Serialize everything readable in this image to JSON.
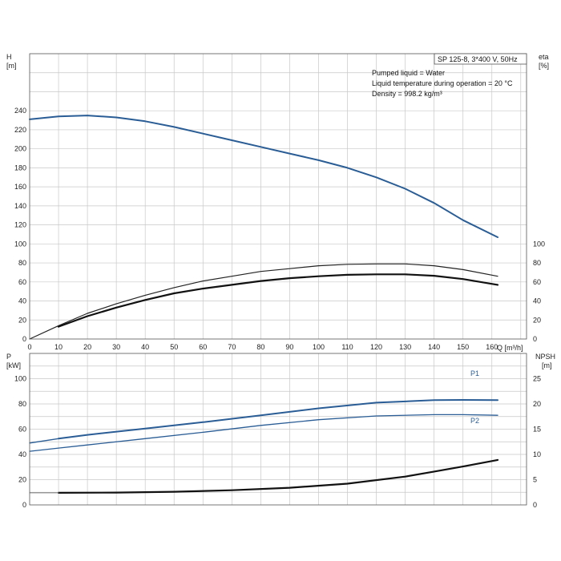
{
  "chart_data": [
    {
      "type": "line",
      "panel": "upper",
      "title_box": "SP 125-8, 3*400 V, 50Hz",
      "info_lines": [
        "Pumped liquid = Water",
        "Liquid temperature during operation = 20 °C",
        "Density = 998.2 kg/m³"
      ],
      "xlabel": "Q [m³/h]",
      "x_ticks": [
        0,
        10,
        20,
        30,
        40,
        50,
        60,
        70,
        80,
        90,
        100,
        110,
        120,
        130,
        140,
        150,
        160
      ],
      "xlim": [
        0,
        172
      ],
      "y_left": {
        "label_line1": "H",
        "label_line2": "[m]",
        "ylim": [
          0,
          300
        ],
        "ticks": [
          0,
          20,
          40,
          60,
          80,
          100,
          120,
          140,
          160,
          180,
          200,
          220,
          240
        ]
      },
      "y_right": {
        "label_line1": "eta",
        "label_line2": "[%]",
        "ticks": [
          0,
          20,
          40,
          60,
          80,
          100
        ]
      },
      "grid": true,
      "series": [
        {
          "role": "head",
          "color": "#2a5d95",
          "x": [
            0,
            10,
            20,
            30,
            40,
            50,
            60,
            70,
            80,
            90,
            100,
            110,
            120,
            130,
            140,
            150,
            162
          ],
          "values": [
            231,
            234,
            235,
            233,
            229,
            223,
            216,
            209,
            202,
            195,
            188,
            180,
            170,
            158,
            143,
            125,
            107
          ]
        },
        {
          "role": "eta-thin",
          "color": "#222222",
          "x": [
            0,
            10,
            20,
            30,
            40,
            50,
            60,
            70,
            80,
            90,
            100,
            110,
            120,
            130,
            140,
            150,
            162
          ],
          "values": [
            0,
            14,
            27,
            37,
            46,
            54,
            61,
            66,
            71,
            74,
            77,
            78.5,
            79,
            79,
            77,
            73,
            66
          ]
        },
        {
          "role": "eta-thick",
          "color": "#111111",
          "x": [
            10,
            20,
            30,
            40,
            50,
            60,
            70,
            80,
            90,
            100,
            110,
            120,
            130,
            140,
            150,
            162
          ],
          "values": [
            13,
            24,
            33,
            41,
            48,
            53,
            57,
            61,
            64,
            66,
            67.5,
            68,
            68,
            66.5,
            63,
            57
          ]
        }
      ]
    },
    {
      "type": "line",
      "panel": "lower",
      "xlim": [
        0,
        172
      ],
      "y_left": {
        "label_line1": "P",
        "label_line2": "[kW]",
        "ylim": [
          0,
          120
        ],
        "ticks": [
          0,
          20,
          40,
          60,
          80,
          100
        ]
      },
      "y_right": {
        "label_line1": "NPSH",
        "label_line2": "[m]",
        "ylim": [
          0,
          30
        ],
        "ticks": [
          0,
          5,
          10,
          15,
          20,
          25
        ]
      },
      "grid": true,
      "series": [
        {
          "name": "P1",
          "axis": "left",
          "color": "#2a5d95",
          "x": [
            10,
            20,
            40,
            60,
            80,
            100,
            120,
            140,
            150,
            162
          ],
          "values": [
            52.5,
            55.5,
            60.5,
            65.5,
            71,
            76.5,
            81,
            83,
            83.2,
            83
          ]
        },
        {
          "name": "P2",
          "axis": "left",
          "color": "#2a5d95",
          "x": [
            0,
            10,
            20,
            40,
            60,
            80,
            100,
            120,
            140,
            150,
            162
          ],
          "values": [
            42.5,
            45,
            47.5,
            52.5,
            57.5,
            63,
            67.5,
            70.5,
            71.5,
            71.5,
            71
          ]
        },
        {
          "role": "P-extension",
          "axis": "left",
          "color": "#2a5d95",
          "x": [
            0,
            10
          ],
          "values": [
            49,
            52.5
          ]
        },
        {
          "role": "npsh",
          "axis": "right",
          "color": "#111111",
          "x": [
            10,
            30,
            50,
            70,
            90,
            110,
            130,
            140,
            150,
            162
          ],
          "values": [
            2.4,
            2.45,
            2.6,
            2.9,
            3.4,
            4.2,
            5.6,
            6.6,
            7.6,
            8.9
          ]
        },
        {
          "role": "npsh-extension",
          "axis": "right",
          "color": "#777777",
          "x": [
            0,
            10
          ],
          "values": [
            2.4,
            2.4
          ]
        }
      ]
    }
  ]
}
